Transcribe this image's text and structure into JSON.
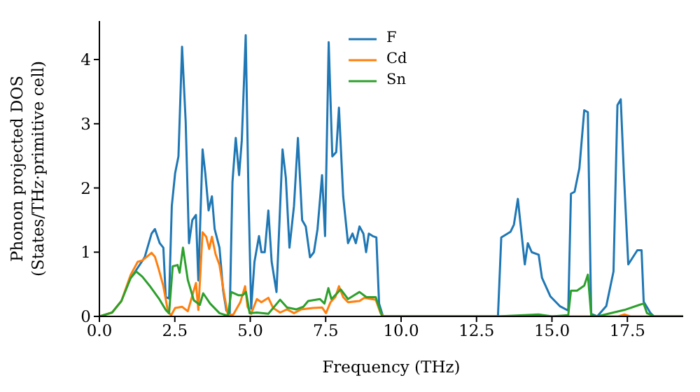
{
  "chart_data": {
    "type": "line",
    "xlabel": "Frequency (THz)",
    "ylabel": "Phonon projected DOS\n(States/THz·primitive cell)",
    "xlim": [
      0,
      19.35
    ],
    "ylim": [
      0,
      4.6
    ],
    "xticks": [
      {
        "value": 0,
        "label": "0.0"
      },
      {
        "value": 2.5,
        "label": "2.5"
      },
      {
        "value": 5,
        "label": "5.0"
      },
      {
        "value": 7.5,
        "label": "7.5"
      },
      {
        "value": 10,
        "label": "10.0"
      },
      {
        "value": 12.5,
        "label": "12.5"
      },
      {
        "value": 15,
        "label": "15.0"
      },
      {
        "value": 17.5,
        "label": "17.5"
      }
    ],
    "yticks": [
      0,
      1,
      2,
      3,
      4
    ],
    "legend": "top",
    "marker": "none",
    "line_style": "solid",
    "grid": false,
    "series": [
      {
        "name": "F",
        "color": "#1f77b4",
        "x": [
          1.04,
          1.19,
          1.5,
          1.73,
          1.84,
          2.0,
          2.12,
          2.2,
          2.31,
          2.4,
          2.51,
          2.62,
          2.74,
          2.86,
          2.97,
          3.08,
          3.2,
          3.28,
          3.42,
          3.51,
          3.62,
          3.73,
          3.82,
          3.98,
          4.1,
          4.21,
          4.32,
          4.41,
          4.52,
          4.63,
          4.72,
          4.85,
          4.94,
          5.03,
          5.14,
          5.29,
          5.37,
          5.48,
          5.6,
          5.71,
          5.87,
          6.07,
          6.18,
          6.3,
          6.45,
          6.58,
          6.72,
          6.84,
          6.98,
          7.11,
          7.23,
          7.38,
          7.48,
          7.6,
          7.72,
          7.85,
          7.94,
          8.08,
          8.24,
          8.39,
          8.5,
          8.62,
          8.75,
          8.84,
          8.93,
          9.06,
          9.18,
          9.27,
          9.4,
          13.21,
          13.32,
          13.63,
          13.74,
          13.87,
          14.1,
          14.2,
          14.33,
          14.56,
          14.67,
          14.95,
          15.26,
          15.54,
          15.63,
          15.75,
          15.91,
          16.07,
          16.19,
          16.3,
          16.5,
          16.8,
          17.04,
          17.17,
          17.28,
          17.39,
          17.53,
          17.83,
          17.97,
          18.04,
          18.27,
          18.38,
          19.35
        ],
        "values": [
          0.6,
          0.7,
          0.92,
          1.29,
          1.36,
          1.14,
          1.07,
          0.3,
          0.28,
          1.72,
          2.23,
          2.49,
          4.2,
          3.03,
          1.14,
          1.5,
          1.58,
          0.56,
          2.6,
          2.23,
          1.65,
          1.87,
          1.36,
          1.07,
          0.41,
          0.09,
          0.05,
          2.09,
          2.78,
          2.2,
          2.74,
          4.38,
          1.94,
          0.12,
          0.85,
          1.25,
          1.0,
          1.0,
          1.65,
          0.85,
          0.38,
          2.6,
          2.16,
          1.07,
          1.72,
          2.78,
          1.5,
          1.4,
          0.92,
          1.0,
          1.36,
          2.2,
          1.25,
          4.27,
          2.49,
          2.56,
          3.25,
          1.87,
          1.14,
          1.29,
          1.14,
          1.4,
          1.29,
          1.0,
          1.29,
          1.25,
          1.23,
          0.2,
          0,
          0,
          1.23,
          1.32,
          1.43,
          1.83,
          0.81,
          1.14,
          1.0,
          0.96,
          0.6,
          0.31,
          0.16,
          0.09,
          1.91,
          1.94,
          2.31,
          3.21,
          3.18,
          0.04,
          0,
          0.16,
          0.7,
          3.29,
          3.38,
          2.16,
          0.81,
          1.03,
          1.03,
          0.23,
          0.05,
          0,
          0
        ]
      },
      {
        "name": "Cd",
        "color": "#ff7f0e",
        "x": [
          0,
          0.42,
          0.73,
          1.04,
          1.27,
          1.42,
          1.58,
          1.73,
          1.84,
          1.97,
          2.12,
          2.28,
          2.38,
          2.51,
          2.74,
          2.93,
          3.2,
          3.28,
          3.42,
          3.54,
          3.64,
          3.73,
          3.85,
          3.98,
          4.13,
          4.26,
          4.44,
          4.67,
          4.83,
          4.91,
          5.03,
          5.22,
          5.37,
          5.6,
          5.76,
          5.99,
          6.22,
          6.45,
          6.69,
          7.07,
          7.38,
          7.51,
          7.66,
          7.82,
          7.94,
          8.08,
          8.24,
          8.62,
          8.78,
          9.16,
          9.32,
          9.43,
          17.2,
          17.4,
          17.6,
          19.35
        ],
        "values": [
          0,
          0.06,
          0.24,
          0.65,
          0.85,
          0.87,
          0.93,
          0.99,
          0.93,
          0.73,
          0.47,
          0.06,
          0.02,
          0.13,
          0.15,
          0.08,
          0.52,
          0.1,
          1.31,
          1.24,
          1.05,
          1.24,
          0.97,
          0.8,
          0.36,
          0.02,
          0.03,
          0.22,
          0.47,
          0.15,
          0.04,
          0.27,
          0.22,
          0.29,
          0.13,
          0.06,
          0.11,
          0.05,
          0.11,
          0.13,
          0.14,
          0.05,
          0.22,
          0.3,
          0.47,
          0.3,
          0.22,
          0.24,
          0.29,
          0.26,
          0.05,
          0,
          0,
          0.03,
          0,
          0
        ]
      },
      {
        "name": "Sn",
        "color": "#2ca02c",
        "x": [
          0,
          0.42,
          0.73,
          1.04,
          1.22,
          1.42,
          1.66,
          1.97,
          2.2,
          2.31,
          2.43,
          2.59,
          2.66,
          2.77,
          2.93,
          3.13,
          3.33,
          3.44,
          3.67,
          3.98,
          4.26,
          4.37,
          4.6,
          4.75,
          4.86,
          4.98,
          5.22,
          5.6,
          5.99,
          6.22,
          6.53,
          6.76,
          6.92,
          7.31,
          7.46,
          7.59,
          7.69,
          8.0,
          8.24,
          8.62,
          8.85,
          9.16,
          9.37,
          13.2,
          14.56,
          15.0,
          15.54,
          15.63,
          15.83,
          16.07,
          16.19,
          16.3,
          16.5,
          17.4,
          17.9,
          18.04,
          18.15,
          18.4,
          19.35
        ],
        "values": [
          0,
          0.06,
          0.24,
          0.6,
          0.7,
          0.62,
          0.48,
          0.28,
          0.1,
          0.05,
          0.78,
          0.8,
          0.68,
          1.07,
          0.57,
          0.25,
          0.18,
          0.36,
          0.2,
          0.05,
          0.01,
          0.38,
          0.33,
          0.33,
          0.38,
          0.05,
          0.06,
          0.04,
          0.26,
          0.14,
          0.11,
          0.15,
          0.24,
          0.27,
          0.2,
          0.44,
          0.27,
          0.42,
          0.27,
          0.38,
          0.3,
          0.3,
          0,
          0,
          0.03,
          0,
          0.02,
          0.4,
          0.4,
          0.48,
          0.65,
          0.02,
          0,
          0.1,
          0.18,
          0.2,
          0.05,
          0,
          0
        ]
      }
    ]
  }
}
